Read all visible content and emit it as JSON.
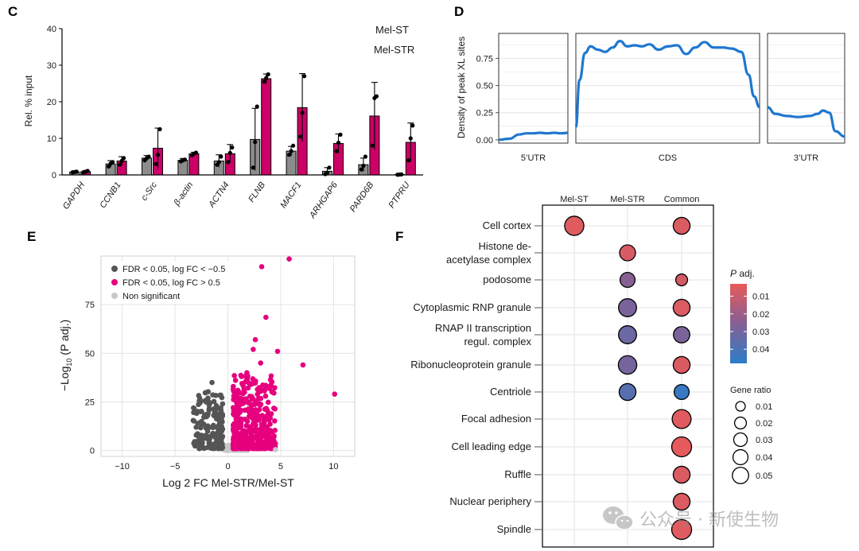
{
  "panels": {
    "c": "C",
    "d": "D",
    "e": "E",
    "f": "F"
  },
  "chart_data": [
    {
      "id": "C",
      "type": "bar",
      "ylabel": "Rel. % input",
      "ylim": [
        0,
        40
      ],
      "yticks": [
        0,
        10,
        20,
        30,
        40
      ],
      "categories": [
        "GAPDH",
        "CCNB1",
        "c-Src",
        "β-actin",
        "ACTN4",
        "FLNB",
        "MACF1",
        "ARHGAP6",
        "PARD6B",
        "PTPRU"
      ],
      "series": [
        {
          "name": "Mel-ST",
          "color": "#8c8c8c",
          "values": [
            0.8,
            3,
            4.6,
            4,
            3.8,
            9.7,
            6.5,
            1,
            2.8,
            0.1
          ],
          "errors": [
            0.3,
            0.9,
            0.7,
            0.5,
            1.7,
            8.5,
            1.3,
            1.0,
            1.8,
            0.1
          ],
          "points": [
            [
              0.7,
              0.8,
              0.9
            ],
            [
              2.3,
              3.1,
              3.5
            ],
            [
              4.0,
              4.6,
              5.0
            ],
            [
              3.7,
              4.0,
              4.2
            ],
            [
              2.8,
              3.5,
              5.0
            ],
            [
              2.0,
              9.0,
              18.7
            ],
            [
              5.5,
              6.5,
              8.0
            ],
            [
              0.2,
              0.6,
              2.0
            ],
            [
              1.5,
              2.5,
              5.0
            ],
            [
              0.05,
              0.1,
              0.15
            ]
          ]
        },
        {
          "name": "Mel-STR",
          "color": "#cc0066",
          "values": [
            0.9,
            3.8,
            7.3,
            5.8,
            5.8,
            26.3,
            18.4,
            8.6,
            16.1,
            8.9
          ],
          "errors": [
            0.3,
            1.2,
            5.5,
            0.4,
            2.5,
            1.3,
            9.3,
            2.6,
            9.2,
            5.3
          ],
          "points": [
            [
              0.7,
              0.9,
              1.1
            ],
            [
              2.8,
              3.8,
              4.6
            ],
            [
              3.0,
              5.5,
              12.5
            ],
            [
              5.4,
              5.8,
              6.1
            ],
            [
              3.5,
              6.0,
              7.5
            ],
            [
              25.5,
              26.5,
              27.5
            ],
            [
              10.5,
              17.0,
              27.0
            ],
            [
              6.5,
              8.8,
              11.0
            ],
            [
              8.0,
              21.0,
              21.5
            ],
            [
              4.0,
              10.0,
              13.5
            ]
          ]
        }
      ]
    },
    {
      "id": "D",
      "type": "line",
      "ylabel": "Density of peak XL sites",
      "ylim": [
        -0.03,
        0.98
      ],
      "yticks": [
        "0.00",
        "0.25",
        "0.50",
        "0.75"
      ],
      "facets": [
        {
          "label": "5’UTR",
          "x": [
            0,
            0.15,
            0.3,
            0.4,
            0.5,
            0.6,
            0.7,
            0.8,
            0.9,
            1
          ],
          "y": [
            0.0,
            0.01,
            0.05,
            0.06,
            0.06,
            0.065,
            0.06,
            0.065,
            0.06,
            0.065
          ]
        },
        {
          "label": "CDS",
          "x": [
            0,
            0.02,
            0.05,
            0.08,
            0.12,
            0.16,
            0.2,
            0.24,
            0.28,
            0.32,
            0.36,
            0.4,
            0.45,
            0.5,
            0.55,
            0.6,
            0.65,
            0.7,
            0.75,
            0.8,
            0.85,
            0.9,
            0.94,
            0.97,
            1
          ],
          "y": [
            0.12,
            0.55,
            0.8,
            0.86,
            0.83,
            0.81,
            0.85,
            0.91,
            0.86,
            0.87,
            0.86,
            0.88,
            0.83,
            0.86,
            0.87,
            0.79,
            0.85,
            0.9,
            0.85,
            0.85,
            0.84,
            0.81,
            0.6,
            0.4,
            0.3
          ]
        },
        {
          "label": "3’UTR",
          "x": [
            0,
            0.1,
            0.25,
            0.4,
            0.55,
            0.65,
            0.72,
            0.8,
            0.88,
            1
          ],
          "y": [
            0.3,
            0.24,
            0.22,
            0.21,
            0.22,
            0.24,
            0.27,
            0.25,
            0.08,
            0.03
          ]
        }
      ]
    },
    {
      "id": "E",
      "type": "scatter",
      "xlabel": "Log 2 FC Mel-STR/Mel-ST",
      "ylabel_main": "−Log",
      "ylabel_sub": "10",
      "ylabel_rest": " (P adj.)",
      "xlim": [
        -12,
        12
      ],
      "ylim": [
        -3,
        100
      ],
      "xticks": [
        -10,
        -5,
        0,
        5,
        10
      ],
      "yticks": [
        0,
        25,
        50,
        75
      ],
      "legend": [
        {
          "label": "FDR < 0.05, log FC < −0.5",
          "color": "#555555"
        },
        {
          "label": "FDR < 0.05, log FC > 0.5",
          "color": "#e6007e"
        },
        {
          "label": "Non significant",
          "color": "#c8c8c8"
        }
      ],
      "highlight_points": [
        [
          5.8,
          98.5
        ],
        [
          3.2,
          94.5
        ],
        [
          3.6,
          68.5
        ],
        [
          2.6,
          57
        ],
        [
          4.7,
          51
        ],
        [
          7.1,
          44
        ],
        [
          10.1,
          29
        ],
        [
          2.4,
          52
        ],
        [
          1.8,
          40
        ],
        [
          3.1,
          45
        ],
        [
          4.0,
          33
        ],
        [
          -1.5,
          35
        ],
        [
          -2.2,
          18
        ],
        [
          -3.0,
          12
        ],
        [
          -2.6,
          20
        ],
        [
          -1.8,
          25
        ],
        [
          4.5,
          0.5
        ]
      ]
    },
    {
      "id": "F",
      "type": "dot",
      "columns": [
        "Mel-ST",
        "Mel-STR",
        "Common"
      ],
      "terms": [
        "Cell cortex",
        "Histone de-\nacetylase complex",
        "podosome",
        "Cytoplasmic RNP granule",
        "RNAP II transcription\nregul. complex",
        "Ribonucleoprotein granule",
        "Centriole",
        "Focal adhesion",
        "Cell leading edge",
        "Ruffle",
        "Nuclear periphery",
        "Spindle"
      ],
      "dots": [
        {
          "term": 0,
          "col": 0,
          "padj": 0.005,
          "ratio": 0.05
        },
        {
          "term": 0,
          "col": 2,
          "padj": 0.006,
          "ratio": 0.035
        },
        {
          "term": 1,
          "col": 1,
          "padj": 0.007,
          "ratio": 0.03
        },
        {
          "term": 2,
          "col": 1,
          "padj": 0.025,
          "ratio": 0.025
        },
        {
          "term": 2,
          "col": 2,
          "padj": 0.008,
          "ratio": 0.012
        },
        {
          "term": 3,
          "col": 1,
          "padj": 0.028,
          "ratio": 0.042
        },
        {
          "term": 3,
          "col": 2,
          "padj": 0.006,
          "ratio": 0.035
        },
        {
          "term": 4,
          "col": 1,
          "padj": 0.032,
          "ratio": 0.042
        },
        {
          "term": 4,
          "col": 2,
          "padj": 0.028,
          "ratio": 0.032
        },
        {
          "term": 5,
          "col": 1,
          "padj": 0.029,
          "ratio": 0.045
        },
        {
          "term": 5,
          "col": 2,
          "padj": 0.006,
          "ratio": 0.035
        },
        {
          "term": 6,
          "col": 1,
          "padj": 0.037,
          "ratio": 0.035
        },
        {
          "term": 6,
          "col": 2,
          "padj": 0.045,
          "ratio": 0.025
        },
        {
          "term": 7,
          "col": 2,
          "padj": 0.005,
          "ratio": 0.048
        },
        {
          "term": 8,
          "col": 2,
          "padj": 0.004,
          "ratio": 0.055
        },
        {
          "term": 9,
          "col": 2,
          "padj": 0.006,
          "ratio": 0.035
        },
        {
          "term": 10,
          "col": 2,
          "padj": 0.006,
          "ratio": 0.035
        },
        {
          "term": 11,
          "col": 2,
          "padj": 0.005,
          "ratio": 0.055
        }
      ],
      "padj_legend": {
        "title_main": "P",
        "title_rest": " adj.",
        "ticks": [
          "0.01",
          "0.02",
          "0.03",
          "0.04"
        ],
        "tick_values": [
          0.01,
          0.02,
          0.03,
          0.04
        ],
        "range": [
          0.003,
          0.048
        ]
      },
      "ratio_legend": {
        "title": "Gene ratio",
        "ticks": [
          "0.01",
          "0.02",
          "0.03",
          "0.04",
          "0.05"
        ],
        "tick_values": [
          0.01,
          0.02,
          0.03,
          0.04,
          0.05
        ]
      }
    }
  ],
  "watermark": "公众号 · 新使生物"
}
